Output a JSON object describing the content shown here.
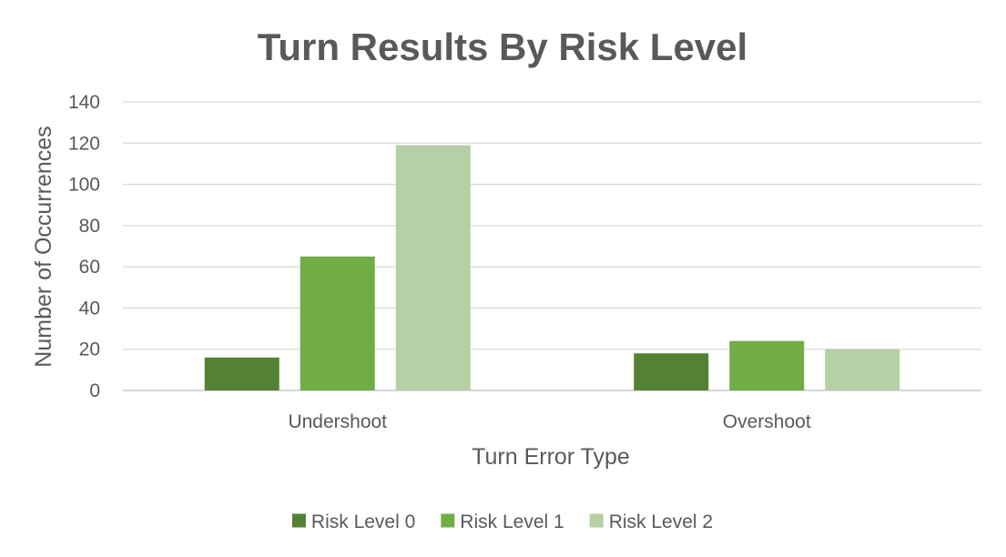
{
  "chart_data": {
    "type": "bar",
    "title": "Turn Results By Risk Level",
    "xlabel": "Turn Error Type",
    "ylabel": "Number of Occurrences",
    "categories": [
      "Undershoot",
      "Overshoot"
    ],
    "series": [
      {
        "name": "Risk Level 0",
        "color": "#548235",
        "values": [
          16,
          18
        ]
      },
      {
        "name": "Risk Level 1",
        "color": "#70ad47",
        "values": [
          65,
          24
        ]
      },
      {
        "name": "Risk Level 2",
        "color": "#b5d0a5",
        "values": [
          119,
          20
        ]
      }
    ],
    "ylim": [
      0,
      140
    ],
    "yticks": [
      0,
      20,
      40,
      60,
      80,
      100,
      120,
      140
    ],
    "grid": true,
    "legend": "bottom"
  }
}
